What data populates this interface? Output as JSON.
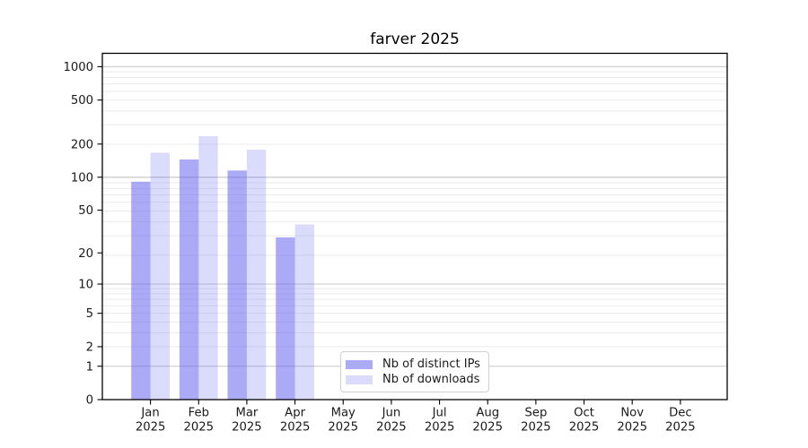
{
  "page": {
    "background": "#ffffff"
  },
  "chart_data": {
    "type": "bar",
    "title": "farver 2025",
    "categories": [
      "Jan 2025",
      "Feb 2025",
      "Mar 2025",
      "Apr 2025",
      "May 2025",
      "Jun 2025",
      "Jul 2025",
      "Aug 2025",
      "Sep 2025",
      "Oct 2025",
      "Nov 2025",
      "Dec 2025"
    ],
    "series": [
      {
        "name": "Nb of distinct IPs",
        "values": [
          91,
          145,
          115,
          28,
          null,
          null,
          null,
          null,
          null,
          null,
          null,
          null
        ]
      },
      {
        "name": "Nb of downloads",
        "values": [
          167,
          235,
          178,
          37,
          null,
          null,
          null,
          null,
          null,
          null,
          null,
          null
        ]
      }
    ],
    "xlabel": "",
    "ylabel": "",
    "y_axis": {
      "scale": "log1p",
      "tick_values": [
        0,
        1,
        2,
        5,
        10,
        20,
        50,
        100,
        200,
        500,
        1000
      ],
      "tick_labels": [
        "0",
        "1",
        "2",
        "5",
        "10",
        "20",
        "50",
        "100",
        "200",
        "500",
        "1000"
      ],
      "range": [
        0,
        1320
      ],
      "major_gridlines": [
        1,
        10,
        100,
        1000
      ],
      "minor_gridline_mantissas": [
        2,
        3,
        4,
        5,
        6,
        7,
        8,
        9,
        10
      ],
      "grid": true
    },
    "legend": {
      "position": "lower-center",
      "labels": [
        "Nb of distinct IPs",
        "Nb of downloads"
      ]
    },
    "colors": {
      "bar_base": "#6464f0",
      "bar_ips_opacity": 0.55,
      "bar_downloads_opacity": 0.23,
      "grid_major": "#c8c8c8",
      "grid_minor": "#ebebeb",
      "axis": "#000000",
      "text": "#1a1a1a",
      "legend_border": "#d0d0d0"
    }
  }
}
